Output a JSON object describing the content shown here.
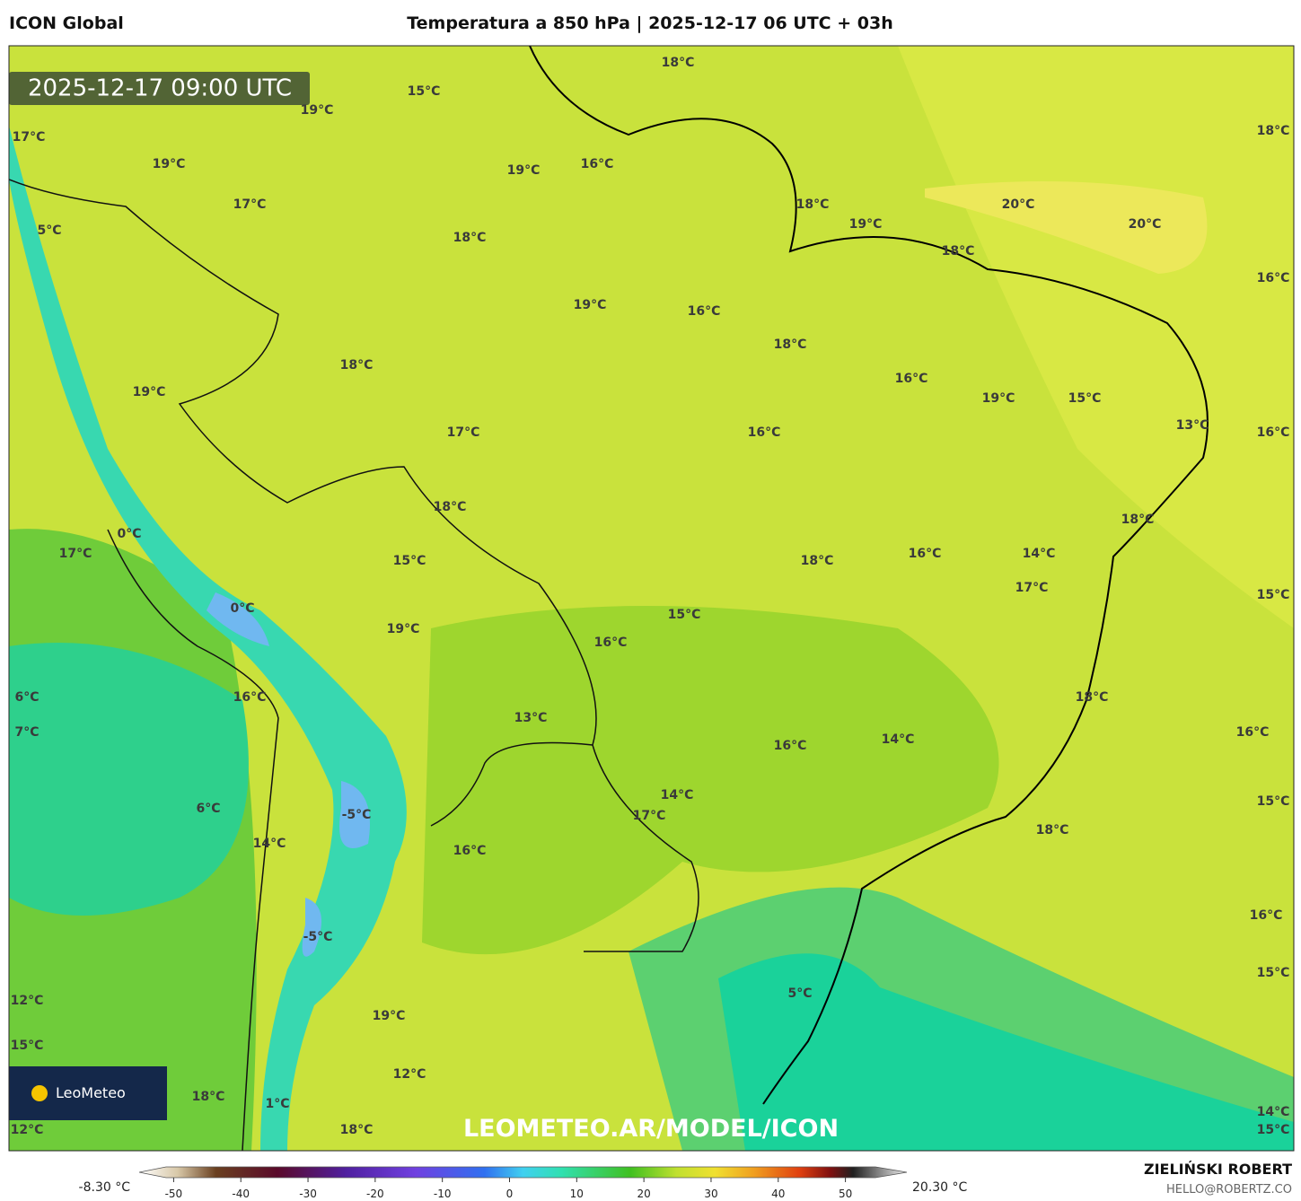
{
  "header": {
    "model": "ICON Global",
    "title": "Temperatura a 850 hPa | 2025-12-17 06 UTC + 03h"
  },
  "map": {
    "timestamp": "2025-12-17 09:00 UTC",
    "watermark": "LEOMETEO.AR/MODEL/ICON",
    "logo": "LeoMeteo",
    "labels": [
      "18°C",
      "15°C",
      "19°C",
      "17°C",
      "19°C",
      "19°C",
      "16°C",
      "18°C",
      "17°C",
      "18°C",
      "19°C",
      "20°C",
      "20°C",
      "5°C",
      "18°C",
      "18°C",
      "16°C",
      "19°C",
      "16°C",
      "18°C",
      "18°C",
      "16°C",
      "19°C",
      "19°C",
      "15°C",
      "13°C",
      "16°C",
      "17°C",
      "16°C",
      "18°C",
      "18°C",
      "0°C",
      "17°C",
      "16°C",
      "15°C",
      "18°C",
      "14°C",
      "17°C",
      "15°C",
      "0°C",
      "15°C",
      "19°C",
      "16°C",
      "6°C",
      "16°C",
      "18°C",
      "13°C",
      "7°C",
      "16°C",
      "14°C",
      "16°C",
      "14°C",
      "15°C",
      "6°C",
      "-5°C",
      "17°C",
      "18°C",
      "14°C",
      "16°C",
      "16°C",
      "-5°C",
      "15°C",
      "5°C",
      "12°C",
      "19°C",
      "15°C",
      "12°C",
      "18°C",
      "1°C",
      "14°C",
      "12°C",
      "18°C",
      "15°C"
    ]
  },
  "colorbar": {
    "min_label": "-8.30 °C",
    "max_label": "20.30 °C",
    "range": [
      -55,
      55
    ],
    "ticks": [
      -50,
      -40,
      -30,
      -20,
      -10,
      0,
      10,
      20,
      30,
      40,
      50
    ]
  },
  "footer": {
    "author": "ZIELIŃSKI ROBERT",
    "contact": "HELLO@ROBERTZ.CO"
  }
}
